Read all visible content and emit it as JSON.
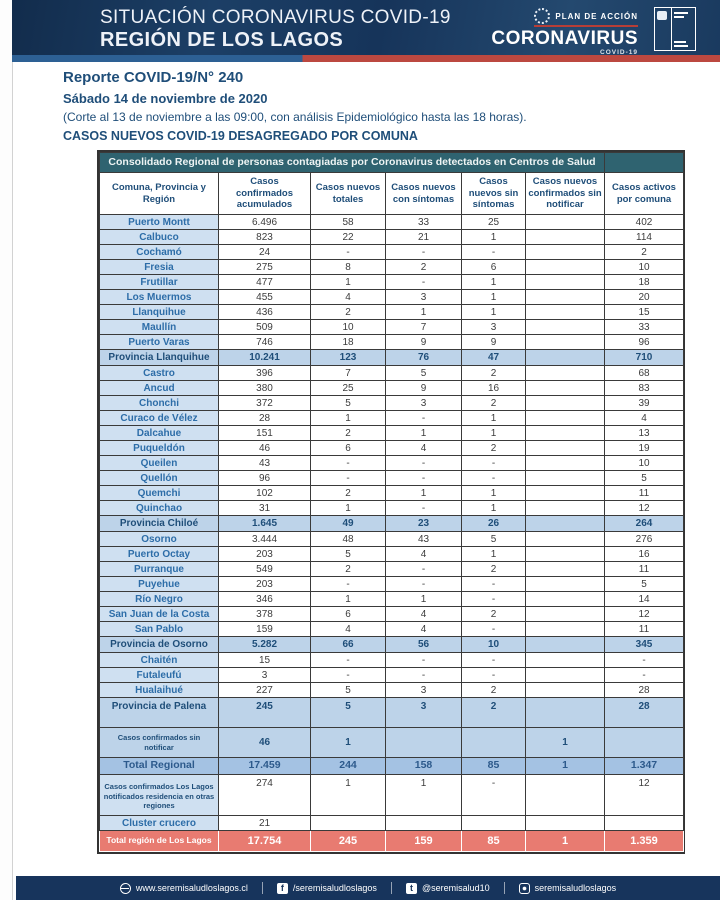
{
  "banner": {
    "title_line1": "SITUACIÓN CORONAVIRUS COVID-19",
    "title_line2": "REGIÓN DE LOS LAGOS",
    "plan_label": "PLAN DE ACCIÓN",
    "plan_name": "CORONAVIRUS",
    "plan_sub": "COVID-19"
  },
  "report": {
    "title": "Reporte COVID-19/N° 240",
    "date": "Sábado 14 de noviembre de 2020",
    "note": "(Corte al 13 de noviembre a las 09:00, con análisis Epidemiológico hasta las 18 horas).",
    "subtitle": "CASOS NUEVOS COVID-19 DESAGREGADO POR COMUNA"
  },
  "table": {
    "band_title": "Consolidado Regional de personas contagiadas por Coronavirus detectados en Centros de Salud",
    "columns": [
      "Comuna, Provincia y Región",
      "Casos confirmados acumulados",
      "Casos nuevos totales",
      "Casos nuevos con síntomas",
      "Casos nuevos sin síntomas",
      "Casos nuevos confirmados sin notificar",
      "Casos activos por comuna"
    ],
    "rows": [
      {
        "label": "Puerto Montt",
        "type": "comuna",
        "values": [
          "6.496",
          "58",
          "33",
          "25",
          "",
          "402"
        ]
      },
      {
        "label": "Calbuco",
        "type": "comuna",
        "values": [
          "823",
          "22",
          "21",
          "1",
          "",
          "114"
        ]
      },
      {
        "label": "Cochamó",
        "type": "comuna",
        "values": [
          "24",
          "-",
          "-",
          "-",
          "",
          "2"
        ]
      },
      {
        "label": "Fresia",
        "type": "comuna",
        "values": [
          "275",
          "8",
          "2",
          "6",
          "",
          "10"
        ]
      },
      {
        "label": "Frutillar",
        "type": "comuna",
        "values": [
          "477",
          "1",
          "-",
          "1",
          "",
          "18"
        ]
      },
      {
        "label": "Los Muermos",
        "type": "comuna",
        "values": [
          "455",
          "4",
          "3",
          "1",
          "",
          "20"
        ]
      },
      {
        "label": "Llanquihue",
        "type": "comuna",
        "values": [
          "436",
          "2",
          "1",
          "1",
          "",
          "15"
        ]
      },
      {
        "label": "Maullín",
        "type": "comuna",
        "values": [
          "509",
          "10",
          "7",
          "3",
          "",
          "33"
        ]
      },
      {
        "label": "Puerto Varas",
        "type": "comuna",
        "values": [
          "746",
          "18",
          "9",
          "9",
          "",
          "96"
        ]
      },
      {
        "label": "Provincia Llanquihue",
        "type": "province",
        "values": [
          "10.241",
          "123",
          "76",
          "47",
          "",
          "710"
        ]
      },
      {
        "label": "Castro",
        "type": "comuna",
        "values": [
          "396",
          "7",
          "5",
          "2",
          "",
          "68"
        ]
      },
      {
        "label": "Ancud",
        "type": "comuna",
        "values": [
          "380",
          "25",
          "9",
          "16",
          "",
          "83"
        ]
      },
      {
        "label": "Chonchi",
        "type": "comuna",
        "values": [
          "372",
          "5",
          "3",
          "2",
          "",
          "39"
        ]
      },
      {
        "label": "Curaco de Vélez",
        "type": "comuna",
        "values": [
          "28",
          "1",
          "-",
          "1",
          "",
          "4"
        ]
      },
      {
        "label": "Dalcahue",
        "type": "comuna",
        "values": [
          "151",
          "2",
          "1",
          "1",
          "",
          "13"
        ]
      },
      {
        "label": "Puqueldón",
        "type": "comuna",
        "values": [
          "46",
          "6",
          "4",
          "2",
          "",
          "19"
        ]
      },
      {
        "label": "Queilen",
        "type": "comuna",
        "values": [
          "43",
          "-",
          "-",
          "-",
          "",
          "10"
        ]
      },
      {
        "label": "Quellón",
        "type": "comuna",
        "values": [
          "96",
          "-",
          "-",
          "-",
          "",
          "5"
        ]
      },
      {
        "label": "Quemchi",
        "type": "comuna",
        "values": [
          "102",
          "2",
          "1",
          "1",
          "",
          "11"
        ]
      },
      {
        "label": "Quinchao",
        "type": "comuna",
        "values": [
          "31",
          "1",
          "-",
          "1",
          "",
          "12"
        ]
      },
      {
        "label": "Provincia Chiloé",
        "type": "province",
        "values": [
          "1.645",
          "49",
          "23",
          "26",
          "",
          "264"
        ]
      },
      {
        "label": "Osorno",
        "type": "comuna",
        "values": [
          "3.444",
          "48",
          "43",
          "5",
          "",
          "276"
        ]
      },
      {
        "label": "Puerto Octay",
        "type": "comuna",
        "values": [
          "203",
          "5",
          "4",
          "1",
          "",
          "16"
        ]
      },
      {
        "label": "Purranque",
        "type": "comuna",
        "values": [
          "549",
          "2",
          "-",
          "2",
          "",
          "11"
        ]
      },
      {
        "label": "Puyehue",
        "type": "comuna",
        "values": [
          "203",
          "-",
          "-",
          "-",
          "",
          "5"
        ]
      },
      {
        "label": "Río Negro",
        "type": "comuna",
        "values": [
          "346",
          "1",
          "1",
          "-",
          "",
          "14"
        ]
      },
      {
        "label": "San Juan de la Costa",
        "type": "comuna",
        "values": [
          "378",
          "6",
          "4",
          "2",
          "",
          "12"
        ]
      },
      {
        "label": "San Pablo",
        "type": "comuna",
        "values": [
          "159",
          "4",
          "4",
          "-",
          "",
          "11"
        ]
      },
      {
        "label": "Provincia de Osorno",
        "type": "province",
        "values": [
          "5.282",
          "66",
          "56",
          "10",
          "",
          "345"
        ]
      },
      {
        "label": "Chaitén",
        "type": "comuna",
        "values": [
          "15",
          "-",
          "-",
          "-",
          "",
          "-"
        ]
      },
      {
        "label": "Futaleufú",
        "type": "comuna",
        "values": [
          "3",
          "-",
          "-",
          "-",
          "",
          "-"
        ]
      },
      {
        "label": "Hualaihué",
        "type": "comuna",
        "values": [
          "227",
          "5",
          "3",
          "2",
          "",
          "28"
        ]
      },
      {
        "label": "Provincia de Palena",
        "type": "province-tall",
        "values": [
          "245",
          "5",
          "3",
          "2",
          "",
          "28"
        ]
      },
      {
        "label": "Casos confirmados sin notificar",
        "type": "special",
        "values": [
          "46",
          "1",
          "",
          "",
          "1",
          ""
        ]
      },
      {
        "label": "Total Regional",
        "type": "total",
        "values": [
          "17.459",
          "244",
          "158",
          "85",
          "1",
          "1.347"
        ]
      },
      {
        "label": "Casos confirmados Los Lagos notificados residencia en otras regiones",
        "type": "note",
        "values": [
          "274",
          "1",
          "1",
          "-",
          "",
          "12"
        ]
      },
      {
        "label": "Cluster crucero",
        "type": "cluster",
        "values": [
          "21",
          "",
          "",
          "",
          "",
          ""
        ]
      },
      {
        "label": "Total región de Los Lagos",
        "type": "grandtotal",
        "values": [
          "17.754",
          "245",
          "159",
          "85",
          "1",
          "1.359"
        ]
      }
    ]
  },
  "footer": {
    "items": [
      {
        "name": "web",
        "icon": "globe-icon",
        "glyph": "",
        "text": "www.seremisaludloslagos.cl"
      },
      {
        "name": "facebook",
        "icon": "facebook-icon",
        "glyph": "f",
        "text": "/seremisaludloslagos"
      },
      {
        "name": "twitter",
        "icon": "twitter-icon",
        "glyph": "t",
        "text": "@seremisalud10"
      },
      {
        "name": "instagram",
        "icon": "instagram-icon",
        "glyph": "",
        "text": "seremisaludloslagos"
      }
    ]
  },
  "colors": {
    "banner_navy": "#16345a",
    "stripe_blue": "#2d6094",
    "stripe_red": "#bc4840",
    "band_teal": "#2f6370",
    "label_blue_bg": "#cfe0f1",
    "province_row_bg": "#bdd3e9",
    "total_row_bg": "#a4c2e3",
    "grandtotal_row_bg": "#e87b71",
    "header_text_blue": "#1f4e79",
    "comuna_text_blue": "#2d6da8",
    "footer_navy": "#17345c"
  }
}
